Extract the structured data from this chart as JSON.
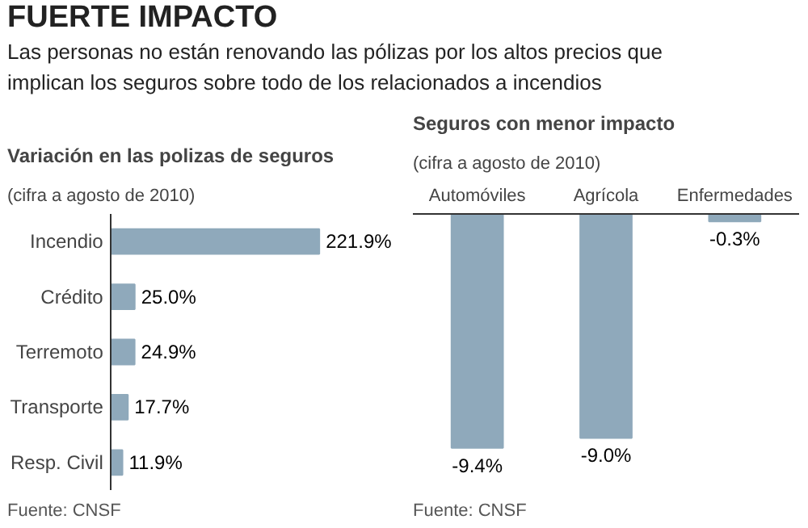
{
  "chart_data": [
    {
      "type": "other",
      "title": "FUERTE IMPACTO",
      "subtitle": "Las personas no están renovando las pólizas por los altos precios que implican los seguros sobre todo de los relacionados a incendios"
    },
    {
      "type": "bar",
      "orientation": "horizontal",
      "title": "Variación en las polizas de seguros",
      "subtitle": "(cifra a agosto de 2010)",
      "categories": [
        "Incendio",
        "Crédito",
        "Terremoto",
        "Transporte",
        "Resp. Civil"
      ],
      "values": [
        221.9,
        25.0,
        24.9,
        17.7,
        11.9
      ],
      "value_labels": [
        "221.9%",
        "25.0%",
        "24.9%",
        "17.7%",
        "11.9%"
      ],
      "color": "#8fa9bb",
      "annotations": [
        "Fuente: CNSF"
      ]
    },
    {
      "type": "bar",
      "title": "Seguros con menor impacto",
      "subtitle": "(cifra a agosto de 2010)",
      "categories": [
        "Automóviles",
        "Agrícola",
        "Enfermedades"
      ],
      "values": [
        -9.4,
        -9.0,
        -0.3
      ],
      "value_labels": [
        "-9.4%",
        "-9.0%",
        "-0.3%"
      ],
      "color": "#8fa9bb",
      "annotations": [
        "Fuente: CNSF"
      ]
    }
  ]
}
